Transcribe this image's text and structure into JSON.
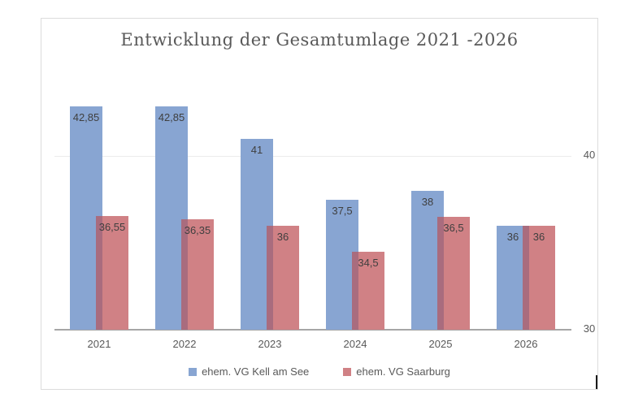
{
  "chart_data": {
    "type": "bar",
    "title": "Entwicklung der Gesamtumlage 2021 -2026",
    "categories": [
      "2021",
      "2022",
      "2023",
      "2024",
      "2025",
      "2026"
    ],
    "series": [
      {
        "name": "ehem. VG Kell am See",
        "color": "#88A5D2",
        "values": [
          42.85,
          42.85,
          41,
          37.5,
          38,
          36
        ],
        "value_labels": [
          "42,85",
          "42,85",
          "41",
          "37,5",
          "38",
          "36"
        ]
      },
      {
        "name": "ehem. VG Saarburg",
        "color": "#D08185",
        "values": [
          36.55,
          36.35,
          36,
          34.5,
          36.5,
          36
        ],
        "value_labels": [
          "36,55",
          "36,35",
          "36",
          "34,5",
          "36,5",
          "36"
        ]
      }
    ],
    "overlap_color": "#A96C7E",
    "xlabel": "",
    "ylabel": "",
    "y_axis": {
      "min": 30,
      "ticks": [
        {
          "value": 30,
          "label": "30"
        },
        {
          "value": 40,
          "label": "40"
        }
      ]
    },
    "grid": "horizontal-major",
    "legend_position": "bottom",
    "bar_style": "overlapped"
  }
}
